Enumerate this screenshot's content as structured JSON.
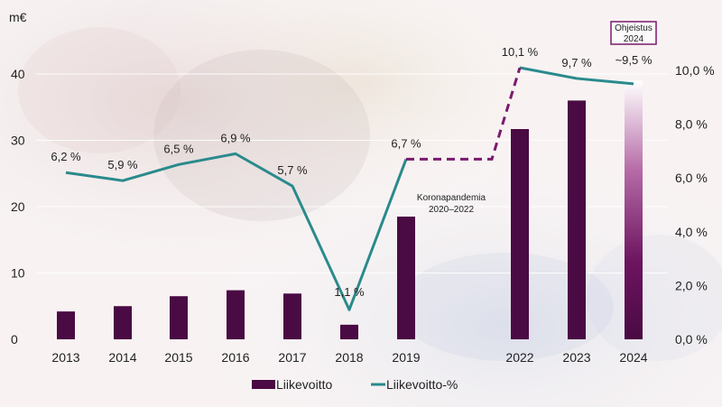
{
  "chart_data": {
    "type": "bar+line",
    "categories": [
      "2013",
      "2014",
      "2015",
      "2016",
      "2017",
      "2018",
      "2019",
      "2022",
      "2023",
      "2024"
    ],
    "y_left_unit": "m€",
    "y_left_ticks": [
      "0",
      "10",
      "20",
      "30",
      "40"
    ],
    "ylim_left": [
      0,
      40
    ],
    "y_right_ticks": [
      "0,0 %",
      "2,0 %",
      "4,0 %",
      "6,0 %",
      "8,0 %",
      "10,0 %"
    ],
    "ylim_right": [
      0,
      10
    ],
    "series": [
      {
        "name": "Liikevoitto",
        "kind": "bar",
        "axis": "left",
        "color": "#4a0a43",
        "values": [
          4.2,
          5.0,
          6.5,
          7.4,
          6.9,
          2.2,
          18.5,
          31.7,
          36.0,
          39.0
        ]
      },
      {
        "name": "Liikevoitto-%",
        "kind": "line",
        "axis": "right",
        "color": "#2a8a8c",
        "values": [
          6.2,
          5.9,
          6.5,
          6.9,
          5.7,
          1.1,
          6.7,
          10.1,
          9.7,
          9.5
        ],
        "labels": [
          "6,2 %",
          "5,9 %",
          "6,5 %",
          "6,9 %",
          "5,7 %",
          "1,1 %",
          "6,7 %",
          "10,1 %",
          "9,7 %",
          "~9,5 %"
        ],
        "gap_between": [
          "2019",
          "2022"
        ],
        "gap_style": "dashed",
        "gap_color": "#7a1a6e"
      }
    ],
    "forecast_category": "2024",
    "annotations": {
      "pandemic": [
        "Koronapandemia",
        "2020–2022"
      ],
      "guidance": [
        "Ohjeistus",
        "2024"
      ]
    },
    "legend_position": "bottom",
    "grid": "horizontal"
  }
}
